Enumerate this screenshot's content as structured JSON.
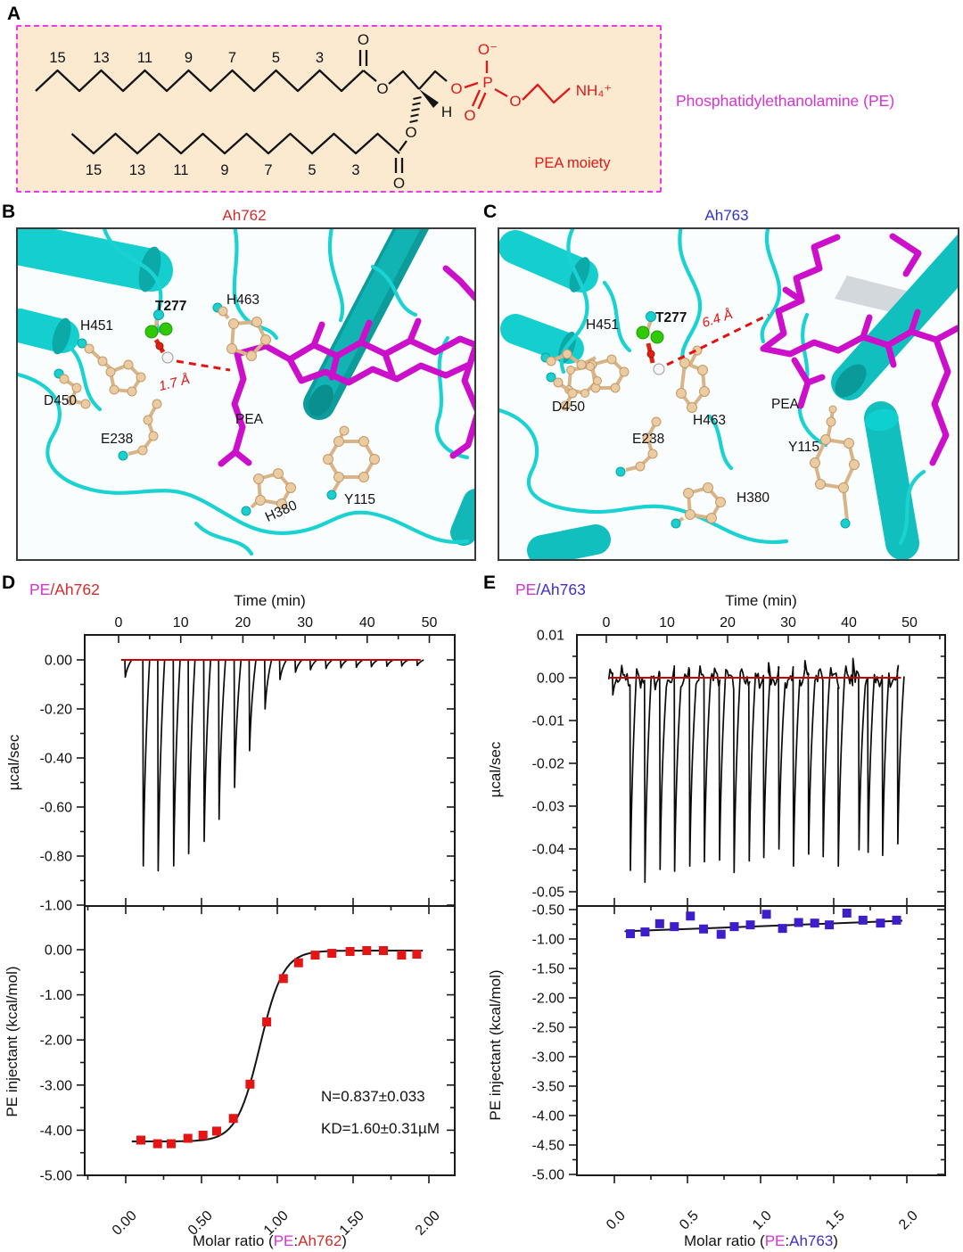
{
  "panelA": {
    "letter": "A",
    "title_label": "Phosphatidylethanolamine (PE)",
    "moiety_label": "PEA moiety",
    "top_chain_numbers": [
      "15",
      "13",
      "11",
      "9",
      "7",
      "5",
      "3"
    ],
    "bottom_chain_numbers": [
      "15",
      "13",
      "11",
      "9",
      "7",
      "5",
      "3"
    ],
    "atoms": {
      "o1": "O",
      "o2": "O",
      "h": "H",
      "o3": "O",
      "o4": "O",
      "o5": "O",
      "p": "P",
      "om": "O⁻",
      "od": "O",
      "ob": "O",
      "nh4": "NH₄⁺"
    },
    "colors": {
      "box_border": "#ea3bea",
      "box_bg": "#fbead0",
      "headgroup_red": "#e01818",
      "bond_black": "#141414",
      "title_magenta": "#d633d6"
    }
  },
  "panelB": {
    "letter": "B",
    "title": "Ah762",
    "title_color": "#d42a2a",
    "labels": {
      "h451": "H451",
      "t277": "T277",
      "h463": "H463",
      "d450": "D450",
      "e238": "E238",
      "pea": "PEA",
      "h380": "H380",
      "y115": "Y115"
    },
    "distance": "1.7 Å"
  },
  "panelC": {
    "letter": "C",
    "title": "Ah763",
    "title_color": "#3232c8",
    "labels": {
      "h451": "H451",
      "t277": "T277",
      "h463": "H463",
      "d450": "D450",
      "e238": "E238",
      "pea": "PEA",
      "h380": "H380",
      "y115": "Y115"
    },
    "distance": "6.4 Å"
  },
  "panelD": {
    "letter": "D",
    "title_pe": "PE",
    "title_rest": "/Ah762",
    "time_axis_label": "Time (min)",
    "ylabel_top": "µcal/sec",
    "ylabel_bottom": "PE injectant (kcal/mol)",
    "xlabel_prefix": "Molar ratio (",
    "xlabel_pe": "PE",
    "xlabel_colon": ":",
    "xlabel_protein": "Ah762",
    "xlabel_suffix": ")",
    "annotation_n": "N=0.837±0.033",
    "annotation_kd": "KD=1.60±0.31µM"
  },
  "panelE": {
    "letter": "E",
    "title_pe": "PE",
    "title_rest": "/Ah763",
    "time_axis_label": "Time (min)",
    "ylabel_top": "µcal/sec",
    "ylabel_bottom": "PE injectant (kcal/mol)",
    "xlabel_prefix": "Molar ratio (",
    "xlabel_pe": "PE",
    "xlabel_colon": ":",
    "xlabel_protein": "Ah763",
    "xlabel_suffix": ")"
  },
  "chart_data": [
    {
      "id": "thermogram-PE-Ah762",
      "type": "line",
      "panel": "D",
      "title": "PE/Ah762",
      "xlabel": "Time (min)",
      "ylabel": "µcal/sec",
      "xlim": [
        -5,
        54
      ],
      "ylim": [
        -1.1,
        0.1
      ],
      "x_ticks": [
        0,
        10,
        20,
        30,
        40,
        50
      ],
      "y_ticks": [
        "0.00",
        "-0.20",
        "-0.40",
        "-0.60",
        "-0.80",
        "-1.00"
      ],
      "y_tick_values": [
        0,
        -0.2,
        -0.4,
        -0.6,
        -0.8,
        -1.0
      ],
      "baseline_color": "#c40000",
      "line_color": "#0a0a0a",
      "t_start": 0.4,
      "t_end": 48.8,
      "noise_amp": 0,
      "injection_times": [
        1.0,
        3.9,
        6.3,
        8.8,
        11.2,
        13.7,
        16.1,
        18.6,
        21.0,
        23.5,
        25.9,
        28.4,
        30.8,
        33.3,
        35.7,
        38.2,
        40.6,
        43.1,
        45.5,
        48.0
      ],
      "peak_depths": [
        -0.07,
        -0.84,
        -0.86,
        -0.84,
        -0.79,
        -0.74,
        -0.65,
        -0.52,
        -0.37,
        -0.2,
        -0.08,
        -0.05,
        -0.04,
        -0.035,
        -0.032,
        -0.03,
        -0.028,
        -0.026,
        -0.025,
        -0.023
      ]
    },
    {
      "id": "isotherm-PE-Ah762",
      "type": "scatter",
      "panel": "D",
      "xlabel": "Molar ratio (PE:Ah762)",
      "ylabel": "PE injectant (kcal/mol)",
      "xlim": [
        -0.27,
        2.17
      ],
      "ylim": [
        -5.0,
        0.97
      ],
      "x_ticks": [
        "0.00",
        "0.50",
        "1.00",
        "1.50",
        "2.00"
      ],
      "x_tick_values": [
        0,
        0.5,
        1.0,
        1.5,
        2.0
      ],
      "y_ticks": [
        "0.00",
        "-1.00",
        "-2.00",
        "-3.00",
        "-4.00",
        "-5.00"
      ],
      "y_tick_values": [
        0,
        -1,
        -2,
        -3,
        -4,
        -5
      ],
      "marker_color": "#e51515",
      "points": [
        [
          0.1,
          -4.22
        ],
        [
          0.21,
          -4.3
        ],
        [
          0.3,
          -4.3
        ],
        [
          0.41,
          -4.18
        ],
        [
          0.51,
          -4.11
        ],
        [
          0.6,
          -4.02
        ],
        [
          0.71,
          -3.74
        ],
        [
          0.82,
          -2.98
        ],
        [
          0.93,
          -1.6
        ],
        [
          1.04,
          -0.64
        ],
        [
          1.14,
          -0.29
        ],
        [
          1.25,
          -0.12
        ],
        [
          1.36,
          -0.08
        ],
        [
          1.48,
          -0.04
        ],
        [
          1.59,
          -0.02
        ],
        [
          1.7,
          -0.02
        ],
        [
          1.82,
          -0.12
        ],
        [
          1.92,
          -0.1
        ]
      ],
      "fit_sigmoid": {
        "bottom": -4.25,
        "top": -0.02,
        "x0": 0.885,
        "k": 13,
        "x_start": 0.04,
        "x_end": 1.96
      },
      "annotations": [
        "N=0.837±0.033",
        "KD=1.60±0.31µM"
      ]
    },
    {
      "id": "thermogram-PE-Ah763",
      "type": "line",
      "panel": "E",
      "title": "PE/Ah763",
      "xlabel": "Time (min)",
      "ylabel": "µcal/sec",
      "xlim": [
        -5,
        55
      ],
      "ylim": [
        -0.054,
        0.012
      ],
      "x_ticks": [
        0,
        10,
        20,
        30,
        40,
        50
      ],
      "y_ticks": [
        "0.01",
        "0.00",
        "-0.01",
        "-0.02",
        "-0.03",
        "-0.04",
        "-0.05"
      ],
      "y_tick_values": [
        0.01,
        0,
        -0.01,
        -0.02,
        -0.03,
        -0.04,
        -0.05
      ],
      "baseline_color": "#c40000",
      "line_color": "#0a0a0a",
      "t_start": 0.4,
      "t_end": 48.6,
      "noise_amp": 0.0015,
      "injection_times": [
        1.0,
        3.9,
        6.3,
        8.8,
        11.2,
        13.7,
        16.1,
        18.6,
        21.0,
        23.5,
        25.9,
        26.7,
        28.4,
        30.8,
        32.7,
        33.3,
        35.7,
        38.2,
        40.6,
        41.6,
        43.1,
        45.5,
        48.0
      ],
      "peak_depths": [
        -0.004,
        -0.045,
        -0.0478,
        -0.0448,
        -0.0452,
        -0.044,
        -0.043,
        -0.0426,
        -0.0455,
        -0.0428,
        -0.042,
        0.0035,
        -0.04,
        -0.044,
        0.004,
        -0.0412,
        -0.0418,
        -0.044,
        0.0045,
        -0.0402,
        -0.0408,
        -0.0415,
        -0.0388
      ]
    },
    {
      "id": "isotherm-PE-Ah763",
      "type": "scatter",
      "panel": "E",
      "xlabel": "Molar ratio (PE:Ah763)",
      "ylabel": "PE injectant (kcal/mol)",
      "xlim": [
        -0.26,
        2.26
      ],
      "ylim": [
        -5.0,
        -0.47
      ],
      "x_ticks": [
        "0.0",
        "0.5",
        "1.0",
        "1.5",
        "2.0"
      ],
      "x_tick_values": [
        0,
        0.5,
        1.0,
        1.5,
        2.0
      ],
      "y_ticks": [
        "-0.50",
        "-1.00",
        "-1.50",
        "-2.00",
        "-2.50",
        "-3.00",
        "-3.50",
        "-4.00",
        "-4.50",
        "-5.00"
      ],
      "y_tick_values": [
        -0.5,
        -1.0,
        -1.5,
        -2.0,
        -2.5,
        -3.0,
        -3.5,
        -4.0,
        -4.5,
        -5.0
      ],
      "marker_color": "#3e1ecb",
      "points": [
        [
          0.11,
          -0.91
        ],
        [
          0.21,
          -0.88
        ],
        [
          0.31,
          -0.74
        ],
        [
          0.41,
          -0.79
        ],
        [
          0.52,
          -0.61
        ],
        [
          0.61,
          -0.83
        ],
        [
          0.73,
          -0.92
        ],
        [
          0.82,
          -0.79
        ],
        [
          0.93,
          -0.76
        ],
        [
          1.04,
          -0.58
        ],
        [
          1.15,
          -0.82
        ],
        [
          1.26,
          -0.72
        ],
        [
          1.37,
          -0.73
        ],
        [
          1.47,
          -0.76
        ],
        [
          1.59,
          -0.56
        ],
        [
          1.7,
          -0.68
        ],
        [
          1.82,
          -0.73
        ],
        [
          1.93,
          -0.68
        ]
      ],
      "fit_line": [
        [
          0.07,
          -0.87
        ],
        [
          1.97,
          -0.69
        ]
      ]
    }
  ]
}
